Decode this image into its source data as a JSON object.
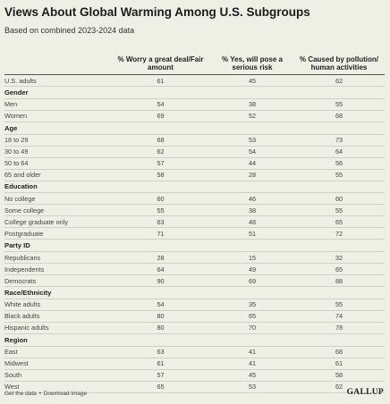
{
  "title": "Views About Global Warming Among U.S. Subgroups",
  "subtitle": "Based on combined 2023-2024 data",
  "columns": [
    "% Worry a great deal/Fair amount",
    "% Yes, will pose a serious risk",
    "% Caused by pollution/ human activities"
  ],
  "rows": [
    {
      "type": "row",
      "label": "U.S. adults",
      "v": [
        "61",
        "45",
        "62"
      ]
    },
    {
      "type": "group",
      "label": "Gender"
    },
    {
      "type": "row",
      "label": "Men",
      "v": [
        "54",
        "38",
        "55"
      ]
    },
    {
      "type": "row",
      "label": "Women",
      "v": [
        "69",
        "52",
        "68"
      ]
    },
    {
      "type": "group",
      "label": "Age"
    },
    {
      "type": "row",
      "label": "18 to 29",
      "v": [
        "68",
        "53",
        "73"
      ]
    },
    {
      "type": "row",
      "label": "30 to 49",
      "v": [
        "62",
        "54",
        "64"
      ]
    },
    {
      "type": "row",
      "label": "50 to 64",
      "v": [
        "57",
        "44",
        "56"
      ]
    },
    {
      "type": "row",
      "label": "65 and older",
      "v": [
        "58",
        "28",
        "55"
      ]
    },
    {
      "type": "group",
      "label": "Education"
    },
    {
      "type": "row",
      "label": "No college",
      "v": [
        "60",
        "46",
        "60"
      ]
    },
    {
      "type": "row",
      "label": "Some college",
      "v": [
        "55",
        "38",
        "55"
      ]
    },
    {
      "type": "row",
      "label": "College graduate only",
      "v": [
        "63",
        "48",
        "65"
      ]
    },
    {
      "type": "row",
      "label": "Postgraduate",
      "v": [
        "71",
        "51",
        "72"
      ]
    },
    {
      "type": "group",
      "label": "Party ID"
    },
    {
      "type": "row",
      "label": "Republicans",
      "v": [
        "28",
        "15",
        "32"
      ]
    },
    {
      "type": "row",
      "label": "Independents",
      "v": [
        "64",
        "49",
        "65"
      ]
    },
    {
      "type": "row",
      "label": "Democrats",
      "v": [
        "90",
        "69",
        "88"
      ]
    },
    {
      "type": "group",
      "label": "Race/Ethnicity"
    },
    {
      "type": "row",
      "label": "White adults",
      "v": [
        "54",
        "35",
        "55"
      ]
    },
    {
      "type": "row",
      "label": "Black adults",
      "v": [
        "80",
        "65",
        "74"
      ]
    },
    {
      "type": "row",
      "label": "Hispanic adults",
      "v": [
        "80",
        "70",
        "78"
      ]
    },
    {
      "type": "group",
      "label": "Region"
    },
    {
      "type": "row",
      "label": "East",
      "v": [
        "63",
        "41",
        "68"
      ]
    },
    {
      "type": "row",
      "label": "Midwest",
      "v": [
        "61",
        "41",
        "61"
      ]
    },
    {
      "type": "row",
      "label": "South",
      "v": [
        "57",
        "45",
        "58"
      ]
    },
    {
      "type": "row",
      "label": "West",
      "v": [
        "65",
        "53",
        "62"
      ]
    }
  ],
  "footer": {
    "get_data": "Get the data",
    "separator": "•",
    "download": "Download image",
    "logo": "GALLUP"
  },
  "colors": {
    "background": "#eef0e6",
    "rule": "#cfd2c5",
    "header_rule": "#555555"
  }
}
